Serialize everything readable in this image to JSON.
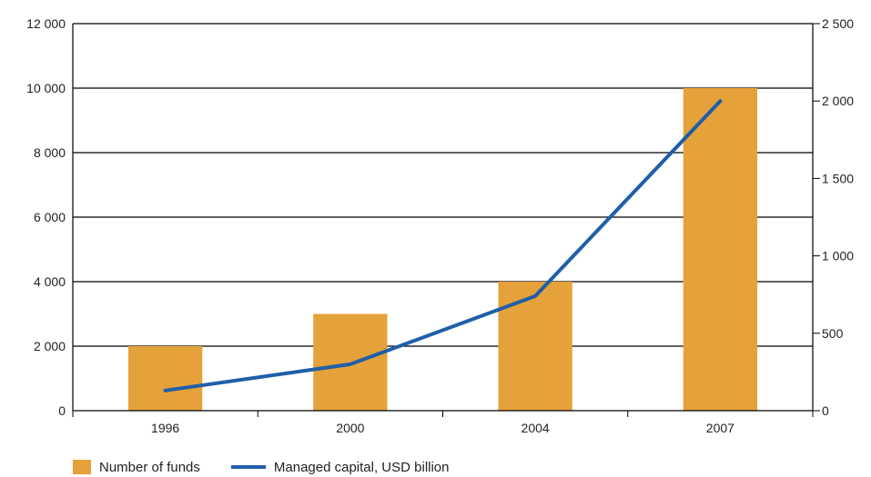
{
  "chart_data": {
    "type": "bar+line",
    "categories": [
      "1996",
      "2000",
      "2004",
      "2007"
    ],
    "series": [
      {
        "name": "Number of funds",
        "type": "bar",
        "axis": "left",
        "values": [
          2000,
          3000,
          4000,
          10000
        ],
        "color": "#E5A13A"
      },
      {
        "name": "Managed capital, USD billion",
        "type": "line",
        "axis": "right",
        "values": [
          130,
          300,
          740,
          2000
        ],
        "color": "#1F5FA8"
      }
    ],
    "y_left": {
      "min": 0,
      "max": 12000,
      "ticks": [
        0,
        2000,
        4000,
        6000,
        8000,
        10000,
        12000
      ],
      "tick_labels": [
        "0",
        "2 000",
        "4 000",
        "6 000",
        "8 000",
        "10 000",
        "12 000"
      ]
    },
    "y_right": {
      "min": 0,
      "max": 2500,
      "ticks": [
        0,
        500,
        1000,
        1500,
        2000,
        2500
      ],
      "tick_labels": [
        "0",
        "500",
        "1 000",
        "1 500",
        "2 000",
        "2 500"
      ]
    },
    "grid": "horizontal",
    "legend_position": "bottom-left"
  }
}
